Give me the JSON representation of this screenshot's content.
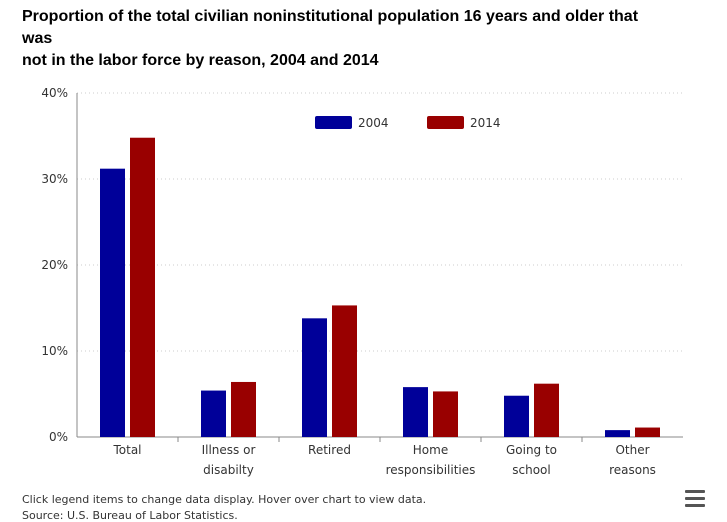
{
  "title": {
    "line1": "Proportion of the total civilian noninstitutional population 16 years and older that",
    "line2": "was",
    "line3": "not in the labor force by reason, 2004 and 2014"
  },
  "footer": {
    "note": "Click legend items to change data display. Hover over chart to view data.",
    "source": "Source: U.S. Bureau of Labor Statistics."
  },
  "colors": {
    "series2004": "#000099",
    "series2014": "#990000",
    "grid": "#cccccc",
    "axis": "#888888"
  },
  "chart_data": {
    "type": "bar",
    "title": "Proportion of the total civilian noninstitutional population 16 years and older that was not in the labor force by reason, 2004 and 2014",
    "categories": [
      [
        "Total"
      ],
      [
        "Illness or",
        "disabilty"
      ],
      [
        "Retired"
      ],
      [
        "Home",
        "responsibilities"
      ],
      [
        "Going to",
        "school"
      ],
      [
        "Other",
        "reasons"
      ]
    ],
    "series": [
      {
        "name": "2004",
        "values": [
          31.2,
          5.4,
          13.8,
          5.8,
          4.8,
          0.8
        ]
      },
      {
        "name": "2014",
        "values": [
          34.8,
          6.4,
          15.3,
          5.3,
          6.2,
          1.1
        ]
      }
    ],
    "yticks": [
      "0%",
      "10%",
      "20%",
      "30%",
      "40%"
    ],
    "ylim": [
      0,
      40
    ],
    "legend_position": "top-center",
    "grid": true
  }
}
